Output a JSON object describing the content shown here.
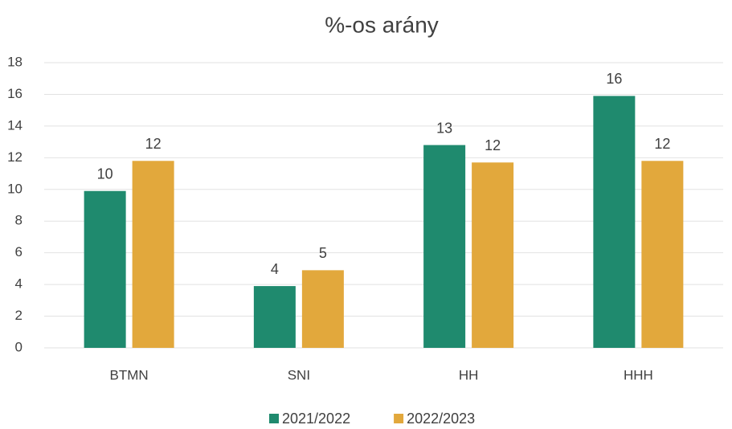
{
  "chart_data": {
    "type": "bar",
    "title": "%-os arány",
    "categories": [
      "BTMN",
      "SNI",
      "HH",
      "HHH"
    ],
    "series": [
      {
        "name": "2021/2022",
        "color": "#1f8a6e",
        "values": [
          9.9,
          3.9,
          12.8,
          15.9
        ],
        "value_labels": [
          "10",
          "4",
          "13",
          "16"
        ]
      },
      {
        "name": "2022/2023",
        "color": "#e2a83c",
        "values": [
          11.8,
          4.9,
          11.7,
          11.8
        ],
        "value_labels": [
          "12",
          "5",
          "12",
          "12"
        ]
      }
    ],
    "ylim": [
      0,
      18
    ],
    "yticks": [
      0,
      2,
      4,
      6,
      8,
      10,
      12,
      14,
      16,
      18
    ],
    "grid": true,
    "legend": "bottom"
  }
}
